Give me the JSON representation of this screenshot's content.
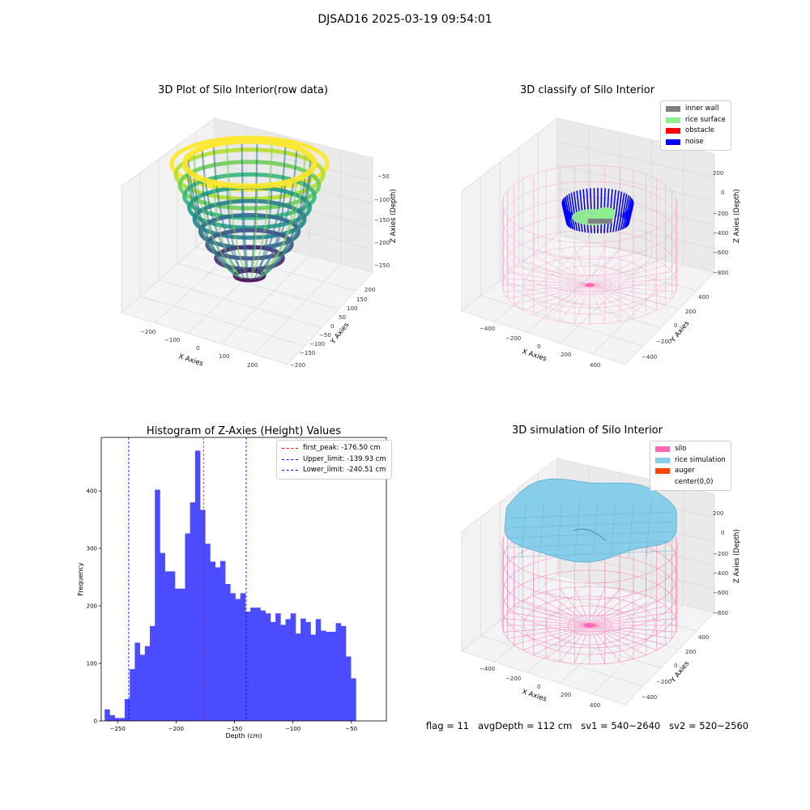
{
  "suptitle": "DJSAD16 2025-03-19 09:54:01",
  "colors": {
    "wireframe_pink": "#ff69b4",
    "noise_blue": "#0000ff",
    "rice_surface_green": "#90ee90",
    "obstacle_red": "#ff0000",
    "inner_wall_gray": "#808080",
    "rice_simulation": "#87ceeb",
    "auger": "#ff4500",
    "hist_bar": "#4b4bff"
  },
  "panel_raw": {
    "title": "3D Plot of Silo Interior(row data)",
    "xlabel": "X Axies",
    "ylabel": "Y Axies",
    "zlabel": "Z Axies (Depth)",
    "xticks": [
      "−200",
      "−100",
      "0",
      "100",
      "200"
    ],
    "yticks": [
      "200",
      "150",
      "100",
      "50",
      "0",
      "−50",
      "−100",
      "−150",
      "−200"
    ],
    "zticks": [
      "−50",
      "−100",
      "−150",
      "−200",
      "−250"
    ],
    "colormap": "viridis"
  },
  "panel_classify": {
    "title": "3D classify of Silo Interior",
    "xlabel": "X Axies",
    "ylabel": "Y Axies",
    "zlabel": "Z Axies (Depth)",
    "xticks": [
      "−400",
      "−200",
      "0",
      "200",
      "400"
    ],
    "yticks": [
      "400",
      "200",
      "0",
      "−200",
      "−400"
    ],
    "zticks": [
      "200",
      "0",
      "−200",
      "−400",
      "−600",
      "−800"
    ],
    "legend": [
      {
        "label": "inner wall",
        "color": "#808080"
      },
      {
        "label": "rice surface",
        "color": "#90ee90"
      },
      {
        "label": "obstacle",
        "color": "#ff0000"
      },
      {
        "label": "noise",
        "color": "#0000ff"
      }
    ]
  },
  "panel_sim": {
    "title": "3D simulation of Silo Interior",
    "xlabel": "X Axies",
    "ylabel": "Y Axies",
    "zlabel": "Z Axies (Depth)",
    "xticks": [
      "−400",
      "−200",
      "0",
      "200",
      "400"
    ],
    "yticks": [
      "400",
      "200",
      "0",
      "−200",
      "−400"
    ],
    "zticks": [
      "200",
      "0",
      "−200",
      "−400",
      "−600",
      "−800"
    ],
    "legend": [
      {
        "label": "silo",
        "color": "#ff69b4"
      },
      {
        "label": "rice simulation",
        "color": "#87ceeb"
      },
      {
        "label": "auger",
        "color": "#ff4500"
      },
      {
        "label": "center(0,0)",
        "color": "transparent"
      }
    ]
  },
  "chart_data": [
    {
      "type": "bar",
      "title": "Histogram of Z-Axies (Height) Values",
      "xlabel": "Depth (cm)",
      "ylabel": "Frequency",
      "xlim": [
        -264,
        -20
      ],
      "ylim": [
        0,
        493
      ],
      "xticks": [
        -250,
        -200,
        -150,
        -100,
        -50
      ],
      "yticks": [
        0,
        100,
        200,
        300,
        400
      ],
      "bin_width": 4.3,
      "bin_start": -261.1,
      "values": [
        20,
        10,
        5,
        5,
        38,
        90,
        136,
        115,
        130,
        165,
        402,
        292,
        260,
        260,
        230,
        230,
        326,
        380,
        470,
        367,
        308,
        277,
        267,
        278,
        238,
        222,
        212,
        222,
        190,
        197,
        197,
        192,
        187,
        172,
        187,
        167,
        177,
        187,
        152,
        178,
        172,
        150,
        177,
        157,
        155,
        155,
        170,
        165,
        112,
        74
      ],
      "vlines": [
        {
          "label": "first_peak: -176.50 cm",
          "x": -176.5,
          "color": "#ff0000"
        },
        {
          "label": "Upper_limit: -139.93 cm",
          "x": -139.93,
          "color": "#0000ff"
        },
        {
          "label": "Lower_limit: -240.51 cm",
          "x": -240.51,
          "color": "#0000ff"
        }
      ],
      "grid": false,
      "legend_position": "top-right"
    }
  ],
  "status": {
    "text": "flag = 11   avgDepth = 112 cm   sv1 = 540~2640   sv2 = 520~2560"
  }
}
